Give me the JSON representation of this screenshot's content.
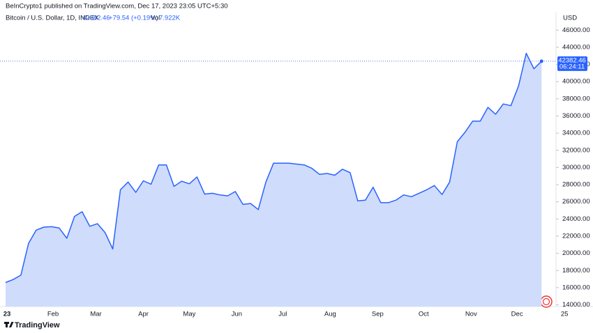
{
  "header": {
    "published": "BeInCrypto1 published on TradingView.com, Dec 17, 2023 23:05 UTC+5:30",
    "brand": "TradingView"
  },
  "chart_data": {
    "type": "area",
    "title": "Bitcoin / U.S. Dollar, 1D, INDEX",
    "last_price": 42382.46,
    "last_price_label": "42382.46",
    "change": "+79.54 (+0.19%)",
    "volume_label": "Vol",
    "volume": "7.922K",
    "countdown": "06:24:11",
    "currency": "USD",
    "color": "#2962ff",
    "fill": "#cfdcfc",
    "x_tick_labels": [
      "23",
      "Feb",
      "Mar",
      "Apr",
      "May",
      "Jun",
      "Jul",
      "Aug",
      "Sep",
      "Oct",
      "Nov",
      "Dec",
      "25"
    ],
    "values": [
      16600,
      16950,
      17450,
      21150,
      22700,
      23050,
      23100,
      22950,
      21750,
      24300,
      24850,
      23150,
      23450,
      22400,
      20500,
      27400,
      28300,
      27100,
      28450,
      28050,
      30300,
      30300,
      27800,
      28400,
      28100,
      28900,
      26900,
      27000,
      26800,
      26700,
      27200,
      25700,
      25800,
      25100,
      28300,
      30500,
      30500,
      30500,
      30400,
      30300,
      29900,
      29200,
      29300,
      29100,
      29800,
      29400,
      26100,
      26200,
      27700,
      25900,
      25900,
      26200,
      26800,
      26600,
      27000,
      27400,
      27900,
      26850,
      28300,
      33000,
      34100,
      35400,
      35400,
      37000,
      36200,
      37400,
      37200,
      39500,
      43300,
      41500,
      42382.46
    ],
    "ylim": [
      13800,
      48050
    ],
    "yticks": [
      {
        "value": 14000,
        "label": "14000.00"
      },
      {
        "value": 16000,
        "label": "16000.00"
      },
      {
        "value": 18000,
        "label": "18000.00"
      },
      {
        "value": 20000,
        "label": "20000.00"
      },
      {
        "value": 22000,
        "label": "22000.00"
      },
      {
        "value": 24000,
        "label": "24000.00"
      },
      {
        "value": 26000,
        "label": "26000.00"
      },
      {
        "value": 28000,
        "label": "28000.00"
      },
      {
        "value": 30000,
        "label": "30000.00"
      },
      {
        "value": 32000,
        "label": "32000.00"
      },
      {
        "value": 34000,
        "label": "34000.00"
      },
      {
        "value": 36000,
        "label": "36000.00"
      },
      {
        "value": 38000,
        "label": "38000.00"
      },
      {
        "value": 40000,
        "label": "40000.00"
      },
      {
        "value": 42000,
        "label": "42000.00"
      },
      {
        "value": 44000,
        "label": "44000.00"
      },
      {
        "value": 46000,
        "label": "46000.00"
      }
    ]
  }
}
